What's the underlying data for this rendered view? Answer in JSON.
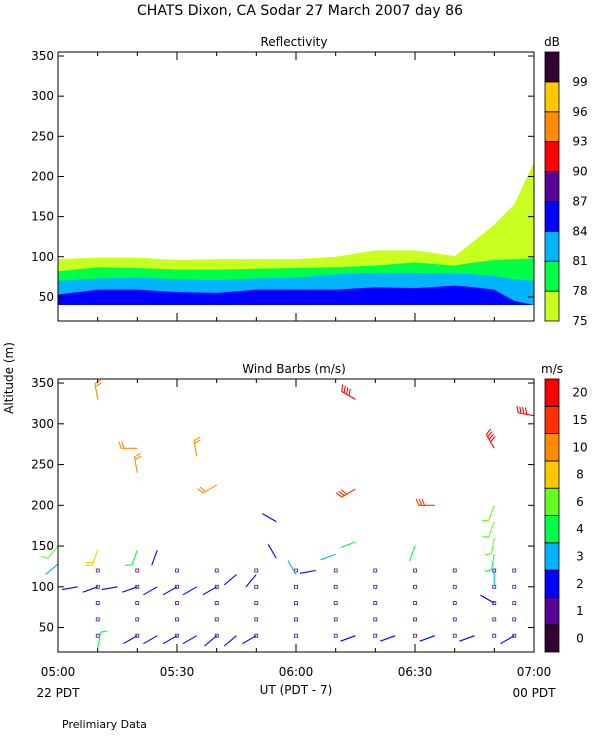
{
  "page": {
    "title": "CHATS Dixon, CA  Sodar  27 March 2007  day  86",
    "ylabel": "Altitude (m)",
    "xlabel": "UT  (PDT - 7)",
    "left_date": "22 PDT",
    "right_date": "00 PDT",
    "footnote": "Prelimiary Data"
  },
  "chart_data": [
    {
      "type": "area",
      "title": "Reflectivity",
      "colorbar_unit": "dB",
      "xlim": [
        "05:00",
        "07:00"
      ],
      "ylim": [
        20,
        355
      ],
      "x_ticks": [
        "05:00",
        "05:30",
        "06:00",
        "06:30",
        "07:00"
      ],
      "y_ticks": [
        50,
        100,
        150,
        200,
        250,
        300,
        350
      ],
      "time_hours": [
        0.0,
        0.167,
        0.333,
        0.5,
        0.667,
        0.833,
        1.0,
        1.167,
        1.333,
        1.5,
        1.667,
        1.75,
        1.833,
        1.917,
        2.0
      ],
      "contours": [
        {
          "level": 84,
          "tops": [
            53,
            59,
            59,
            56,
            55,
            59,
            59,
            59,
            62,
            61,
            64,
            62,
            59,
            45,
            40
          ],
          "color": "#0000ff"
        },
        {
          "level": 81,
          "tops": [
            70,
            73,
            74,
            72,
            71,
            73,
            74,
            78,
            80,
            80,
            79,
            78,
            76,
            72,
            70
          ],
          "color": "#00b4ff"
        },
        {
          "level": 78,
          "tops": [
            82,
            87,
            86,
            84,
            84,
            85,
            86,
            87,
            89,
            93,
            89,
            93,
            96,
            97,
            98
          ],
          "color": "#00ff46"
        },
        {
          "level": 75,
          "tops": [
            97,
            99,
            99,
            96,
            97,
            97,
            97,
            100,
            108,
            108,
            101,
            120,
            140,
            165,
            218
          ],
          "color": "#c8ff1e"
        }
      ],
      "colorbar": {
        "levels": [
          75,
          78,
          81,
          84,
          87,
          90,
          93,
          96,
          99
        ],
        "colors": [
          "#c8ff1e",
          "#00ff46",
          "#00b4ff",
          "#0000ff",
          "#5a0096",
          "#ff0000",
          "#ff8c00",
          "#ffc800",
          "#320032"
        ]
      }
    },
    {
      "type": "scatter",
      "title": "Wind Barbs (m/s)",
      "colorbar_unit": "m/s",
      "xlim": [
        "05:00",
        "07:00"
      ],
      "ylim": [
        20,
        355
      ],
      "x_ticks": [
        "05:00",
        "05:30",
        "06:00",
        "06:30",
        "07:00"
      ],
      "y_ticks": [
        50,
        100,
        150,
        200,
        250,
        300,
        350
      ],
      "colorbar": {
        "levels": [
          0,
          1,
          2,
          3,
          4,
          6,
          8,
          10,
          15,
          20
        ],
        "colors": [
          "#320032",
          "#5a0096",
          "#0000ff",
          "#00b4ff",
          "#00ff46",
          "#64ff1e",
          "#ffc800",
          "#ff8c00",
          "#ff3200",
          "#ff0000"
        ]
      },
      "calm_points": {
        "heights": [
          40,
          60,
          80,
          100,
          120
        ],
        "times_hours": [
          0.167,
          0.333,
          0.5,
          0.667,
          0.833,
          1.0,
          1.167,
          1.333,
          1.5,
          1.667,
          1.833,
          1.917
        ]
      },
      "barbs": [
        {
          "t": 0.0,
          "h": 128,
          "speed": 3,
          "dir": 230
        },
        {
          "t": 0.0,
          "h": 150,
          "speed": 6,
          "dir": 220
        },
        {
          "t": 0.083,
          "h": 100,
          "speed": 2,
          "dir": 260
        },
        {
          "t": 0.167,
          "h": 145,
          "speed": 8,
          "dir": 200
        },
        {
          "t": 0.167,
          "h": 25,
          "speed": 5,
          "dir": 10
        },
        {
          "t": 0.167,
          "h": 100,
          "speed": 2,
          "dir": 250
        },
        {
          "t": 0.25,
          "h": 100,
          "speed": 2,
          "dir": 260
        },
        {
          "t": 0.333,
          "h": 40,
          "speed": 2,
          "dir": 240
        },
        {
          "t": 0.333,
          "h": 100,
          "speed": 2,
          "dir": 250
        },
        {
          "t": 0.333,
          "h": 145,
          "speed": 5,
          "dir": 200
        },
        {
          "t": 0.333,
          "h": 240,
          "speed": 12,
          "dir": 350
        },
        {
          "t": 0.417,
          "h": 40,
          "speed": 2,
          "dir": 240
        },
        {
          "t": 0.417,
          "h": 100,
          "speed": 2,
          "dir": 240
        },
        {
          "t": 0.417,
          "h": 145,
          "speed": 2,
          "dir": 200
        },
        {
          "t": 0.5,
          "h": 40,
          "speed": 2,
          "dir": 240
        },
        {
          "t": 0.5,
          "h": 100,
          "speed": 2,
          "dir": 240
        },
        {
          "t": 0.583,
          "h": 40,
          "speed": 2,
          "dir": 240
        },
        {
          "t": 0.583,
          "h": 100,
          "speed": 2,
          "dir": 240
        },
        {
          "t": 0.583,
          "h": 260,
          "speed": 12,
          "dir": 350
        },
        {
          "t": 0.667,
          "h": 40,
          "speed": 2,
          "dir": 230
        },
        {
          "t": 0.667,
          "h": 100,
          "speed": 2,
          "dir": 240
        },
        {
          "t": 0.667,
          "h": 225,
          "speed": 10,
          "dir": 240
        },
        {
          "t": 0.75,
          "h": 40,
          "speed": 2,
          "dir": 230
        },
        {
          "t": 0.75,
          "h": 115,
          "speed": 2,
          "dir": 230
        },
        {
          "t": 0.833,
          "h": 40,
          "speed": 2,
          "dir": 240
        },
        {
          "t": 0.833,
          "h": 115,
          "speed": 2,
          "dir": 220
        },
        {
          "t": 0.917,
          "h": 135,
          "speed": 2,
          "dir": 330
        },
        {
          "t": 0.917,
          "h": 180,
          "speed": 2,
          "dir": 300
        },
        {
          "t": 1.0,
          "h": 115,
          "speed": 3,
          "dir": 330
        },
        {
          "t": 1.083,
          "h": 120,
          "speed": 2,
          "dir": 260
        },
        {
          "t": 1.167,
          "h": 140,
          "speed": 3,
          "dir": 250
        },
        {
          "t": 1.25,
          "h": 40,
          "speed": 2,
          "dir": 250
        },
        {
          "t": 1.25,
          "h": 155,
          "speed": 4,
          "dir": 250
        },
        {
          "t": 1.417,
          "h": 40,
          "speed": 2,
          "dir": 250
        },
        {
          "t": 1.5,
          "h": 150,
          "speed": 4,
          "dir": 200
        },
        {
          "t": 1.583,
          "h": 40,
          "speed": 2,
          "dir": 250
        },
        {
          "t": 1.583,
          "h": 200,
          "speed": 15,
          "dir": 270
        },
        {
          "t": 1.75,
          "h": 40,
          "speed": 2,
          "dir": 250
        },
        {
          "t": 1.833,
          "h": 80,
          "speed": 2,
          "dir": 300
        },
        {
          "t": 1.833,
          "h": 120,
          "speed": 3,
          "dir": 180
        },
        {
          "t": 1.833,
          "h": 140,
          "speed": 5,
          "dir": 190
        },
        {
          "t": 1.833,
          "h": 160,
          "speed": 6,
          "dir": 190
        },
        {
          "t": 1.833,
          "h": 180,
          "speed": 6,
          "dir": 200
        },
        {
          "t": 1.833,
          "h": 200,
          "speed": 6,
          "dir": 200
        },
        {
          "t": 1.833,
          "h": 270,
          "speed": 20,
          "dir": 330
        },
        {
          "t": 1.917,
          "h": 40,
          "speed": 2,
          "dir": 240
        },
        {
          "t": 1.25,
          "h": 220,
          "speed": 15,
          "dir": 240
        },
        {
          "t": 1.25,
          "h": 330,
          "speed": 20,
          "dir": 300
        },
        {
          "t": 0.167,
          "h": 330,
          "speed": 12,
          "dir": 350
        },
        {
          "t": 0.333,
          "h": 270,
          "speed": 12,
          "dir": 270
        },
        {
          "t": 2.0,
          "h": 310,
          "speed": 20,
          "dir": 280
        }
      ]
    }
  ]
}
